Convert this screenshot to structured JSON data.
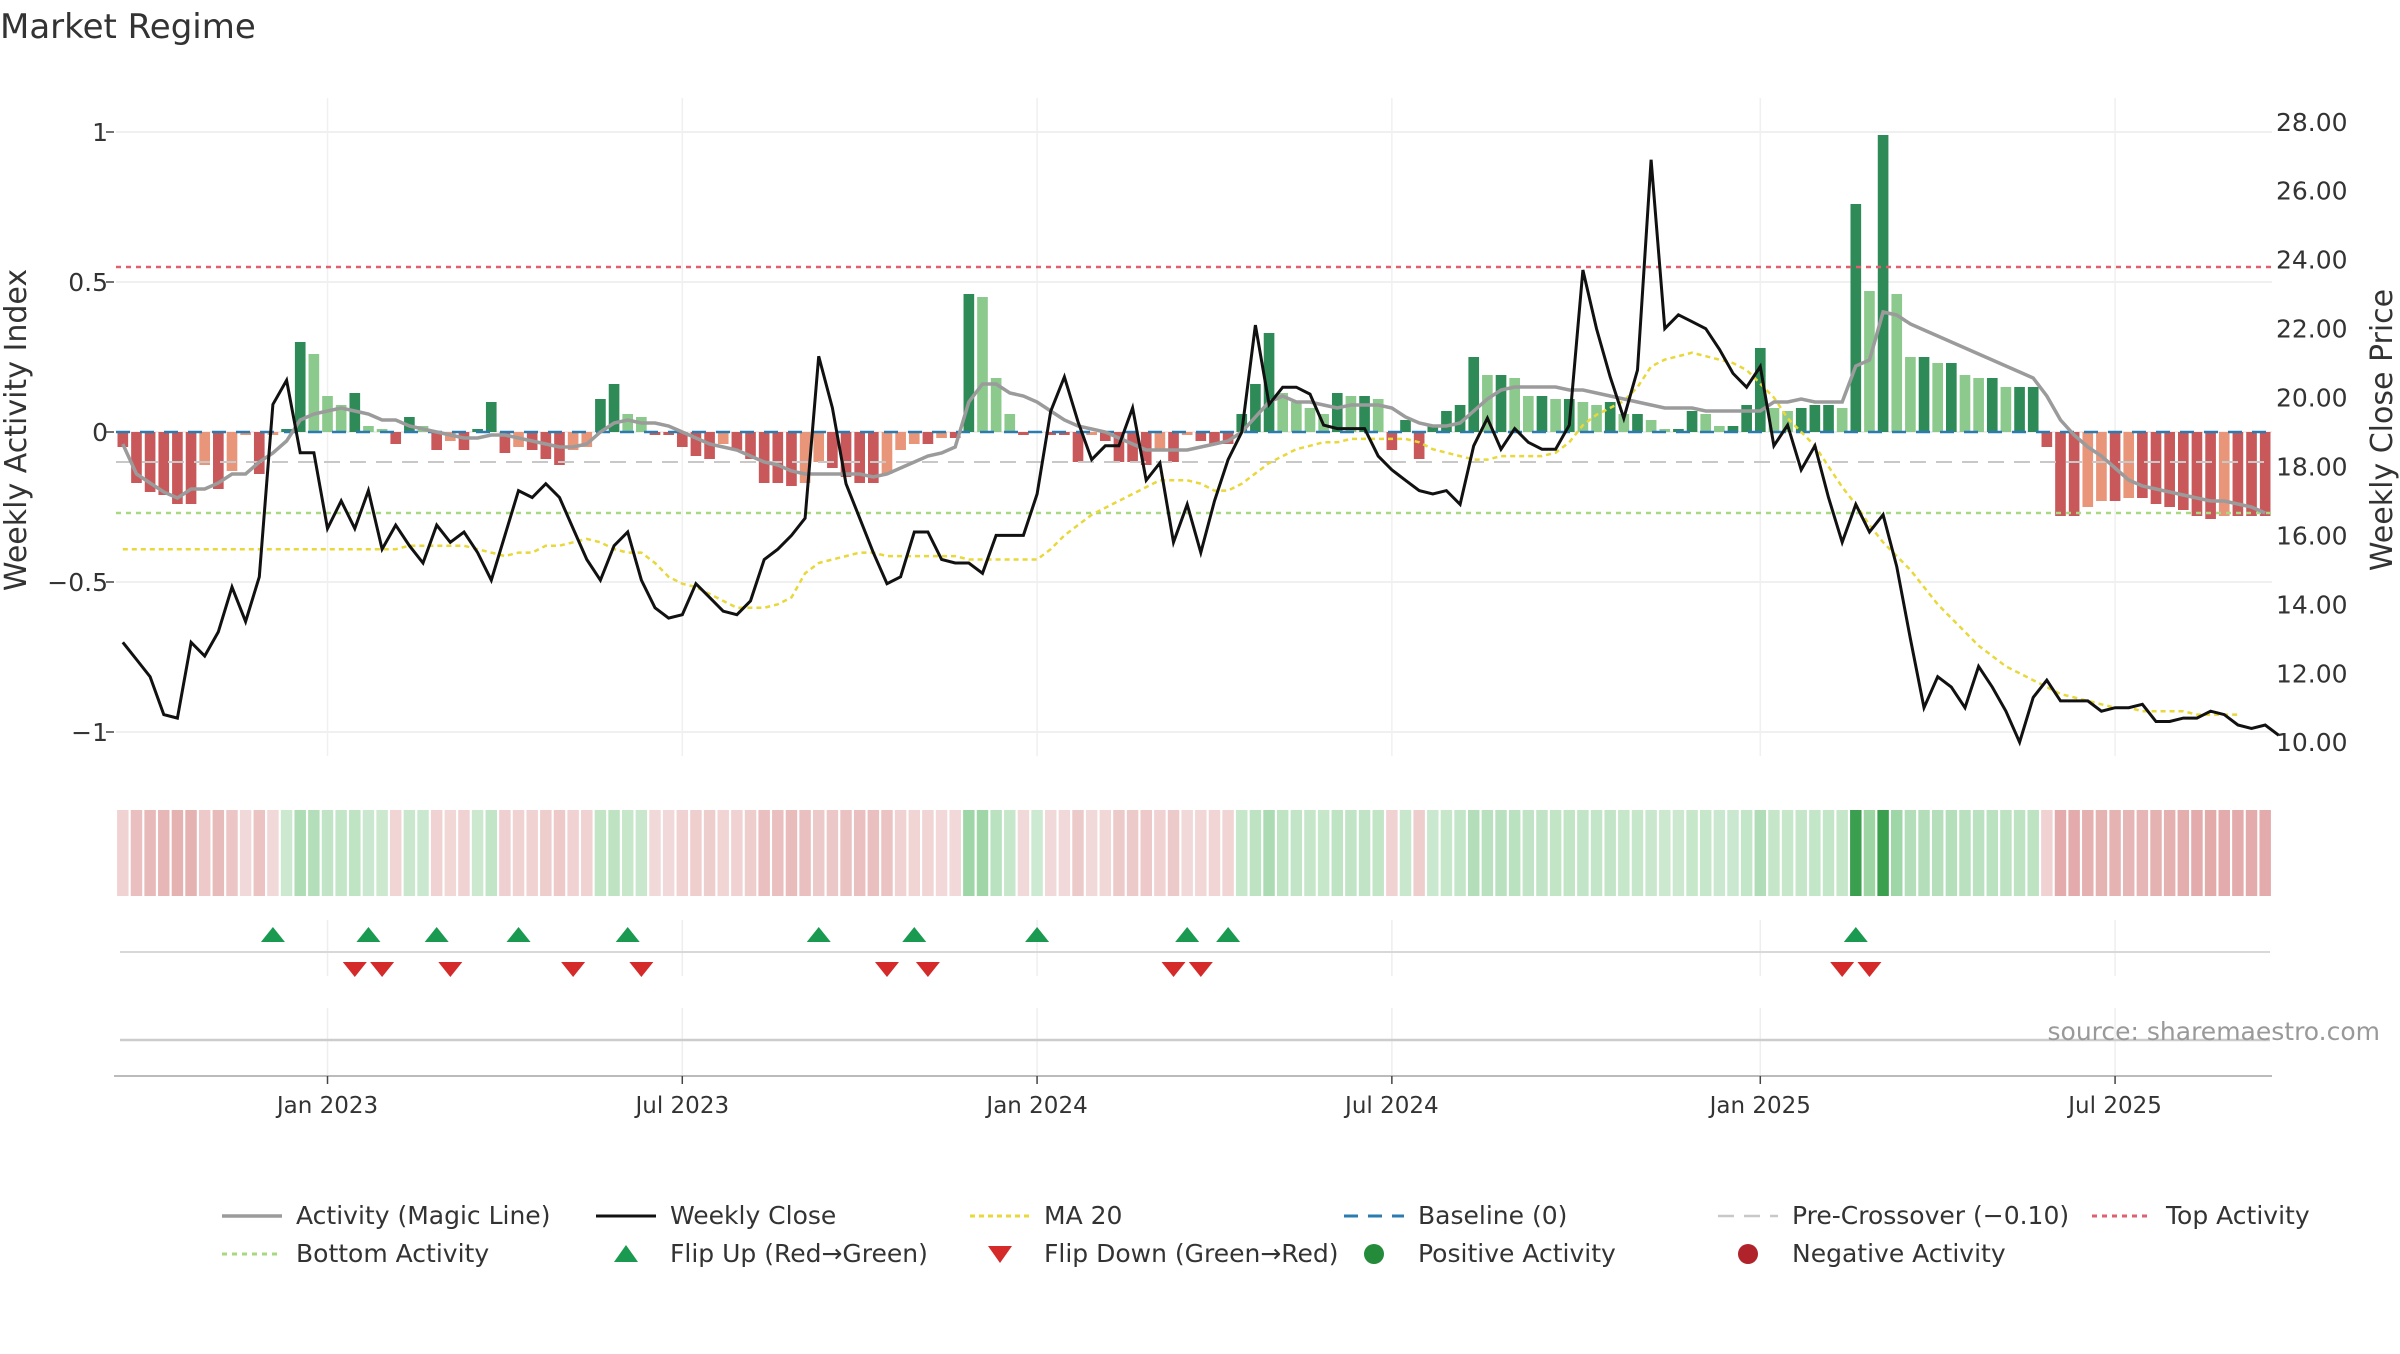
{
  "chart_data": {
    "type": "bar",
    "title": "Market Regime",
    "source_note": "source: sharemaestro.com",
    "ylabel_left": "Weekly Activity Index",
    "ylabel_right": "Weekly Close Price",
    "ylim_left": [
      -1.08,
      1.08
    ],
    "ylim_right": [
      9.6,
      28.4
    ],
    "left_ticks": [
      {
        "value": 1,
        "label": "1"
      },
      {
        "value": 0.5,
        "label": "0.5"
      },
      {
        "value": 0,
        "label": "0"
      },
      {
        "value": -0.5,
        "label": "−0.5"
      },
      {
        "value": -1,
        "label": "−1"
      }
    ],
    "right_ticks": [
      {
        "value": 28,
        "label": "28.00"
      },
      {
        "value": 26,
        "label": "26.00"
      },
      {
        "value": 24,
        "label": "24.00"
      },
      {
        "value": 22,
        "label": "22.00"
      },
      {
        "value": 20,
        "label": "20.00"
      },
      {
        "value": 18,
        "label": "18.00"
      },
      {
        "value": 16,
        "label": "16.00"
      },
      {
        "value": 14,
        "label": "14.00"
      },
      {
        "value": 12,
        "label": "12.00"
      },
      {
        "value": 10,
        "label": "10.00"
      }
    ],
    "x_ticks": [
      {
        "index": 15,
        "label": "Jan 2023"
      },
      {
        "index": 41,
        "label": "Jul 2023"
      },
      {
        "index": 67,
        "label": "Jan 2024"
      },
      {
        "index": 93,
        "label": "Jul 2024"
      },
      {
        "index": 120,
        "label": "Jan 2025"
      },
      {
        "index": 146,
        "label": "Jul 2025"
      }
    ],
    "n_weeks": 158,
    "activity": [
      -0.05,
      -0.17,
      -0.2,
      -0.21,
      -0.24,
      -0.24,
      -0.11,
      -0.19,
      -0.13,
      -0.01,
      -0.14,
      -0.01,
      0.01,
      0.3,
      0.26,
      0.12,
      0.09,
      0.13,
      0.02,
      0.01,
      -0.04,
      0.05,
      0.02,
      -0.06,
      -0.03,
      -0.06,
      0.01,
      0.1,
      -0.07,
      -0.05,
      -0.06,
      -0.09,
      -0.11,
      -0.06,
      -0.05,
      0.11,
      0.16,
      0.06,
      0.05,
      -0.01,
      -0.01,
      -0.05,
      -0.08,
      -0.09,
      -0.04,
      -0.06,
      -0.09,
      -0.17,
      -0.17,
      -0.18,
      -0.17,
      -0.1,
      -0.12,
      -0.15,
      -0.17,
      -0.17,
      -0.14,
      -0.06,
      -0.04,
      -0.04,
      -0.02,
      -0.02,
      0.46,
      0.45,
      0.18,
      0.06,
      -0.01,
      0.0,
      -0.01,
      -0.01,
      -0.1,
      -0.01,
      -0.03,
      -0.1,
      -0.1,
      -0.11,
      -0.06,
      -0.1,
      -0.01,
      -0.03,
      -0.04,
      -0.04,
      0.06,
      0.16,
      0.33,
      0.13,
      0.1,
      0.08,
      0.06,
      0.13,
      0.12,
      0.12,
      0.11,
      -0.06,
      0.04,
      -0.09,
      0.02,
      0.07,
      0.09,
      0.25,
      0.19,
      0.19,
      0.18,
      0.12,
      0.12,
      0.11,
      0.11,
      0.1,
      0.09,
      0.1,
      0.06,
      0.06,
      0.04,
      0.01,
      0.01,
      0.07,
      0.06,
      0.02,
      0.02,
      0.09,
      0.28,
      0.08,
      0.07,
      0.08,
      0.09,
      0.09,
      0.08,
      0.76,
      0.47,
      0.99,
      0.46,
      0.25,
      0.25,
      0.23,
      0.23,
      0.19,
      0.18,
      0.18,
      0.15,
      0.15,
      0.15,
      -0.05,
      -0.28,
      -0.28,
      -0.25,
      -0.23,
      -0.23,
      -0.22,
      -0.22,
      -0.24,
      -0.25,
      -0.26,
      -0.28,
      -0.29,
      -0.28,
      -0.28,
      -0.28,
      -0.28
    ],
    "magic_line": [
      -0.04,
      -0.14,
      -0.17,
      -0.2,
      -0.22,
      -0.19,
      -0.19,
      -0.17,
      -0.14,
      -0.14,
      -0.1,
      -0.07,
      -0.03,
      0.04,
      0.06,
      0.07,
      0.08,
      0.07,
      0.06,
      0.04,
      0.04,
      0.02,
      0.01,
      0.0,
      -0.01,
      -0.02,
      -0.02,
      -0.01,
      -0.01,
      -0.02,
      -0.03,
      -0.04,
      -0.05,
      -0.05,
      -0.04,
      0.0,
      0.03,
      0.04,
      0.03,
      0.03,
      0.02,
      0.0,
      -0.02,
      -0.04,
      -0.05,
      -0.06,
      -0.08,
      -0.1,
      -0.11,
      -0.13,
      -0.14,
      -0.14,
      -0.14,
      -0.14,
      -0.14,
      -0.15,
      -0.14,
      -0.12,
      -0.1,
      -0.08,
      -0.07,
      -0.05,
      0.1,
      0.16,
      0.16,
      0.13,
      0.12,
      0.1,
      0.07,
      0.04,
      0.02,
      0.01,
      0.0,
      -0.02,
      -0.04,
      -0.06,
      -0.06,
      -0.06,
      -0.06,
      -0.05,
      -0.04,
      -0.03,
      0.0,
      0.05,
      0.1,
      0.12,
      0.1,
      0.1,
      0.09,
      0.08,
      0.09,
      0.09,
      0.09,
      0.08,
      0.05,
      0.03,
      0.02,
      0.02,
      0.03,
      0.07,
      0.11,
      0.14,
      0.15,
      0.15,
      0.15,
      0.15,
      0.14,
      0.14,
      0.13,
      0.12,
      0.11,
      0.1,
      0.09,
      0.08,
      0.08,
      0.08,
      0.07,
      0.07,
      0.07,
      0.07,
      0.07,
      0.1,
      0.1,
      0.11,
      0.1,
      0.1,
      0.1,
      0.22,
      0.24,
      0.4,
      0.39,
      0.36,
      0.34,
      0.32,
      0.3,
      0.28,
      0.26,
      0.24,
      0.22,
      0.2,
      0.18,
      0.12,
      0.04,
      -0.01,
      -0.05,
      -0.08,
      -0.12,
      -0.16,
      -0.18,
      -0.19,
      -0.2,
      -0.21,
      -0.22,
      -0.23,
      -0.23,
      -0.24,
      -0.25,
      -0.27
    ],
    "weekly_close": [
      12.9,
      12.4,
      11.9,
      10.8,
      10.7,
      12.9,
      12.5,
      13.2,
      14.5,
      13.5,
      14.8,
      19.8,
      20.5,
      18.4,
      18.4,
      16.2,
      17.0,
      16.2,
      17.3,
      15.6,
      16.3,
      15.7,
      15.2,
      16.3,
      15.8,
      16.1,
      15.5,
      14.7,
      16.0,
      17.3,
      17.1,
      17.5,
      17.1,
      16.2,
      15.3,
      14.7,
      15.7,
      16.1,
      14.7,
      13.9,
      13.6,
      13.7,
      14.6,
      14.2,
      13.8,
      13.7,
      14.1,
      15.3,
      15.6,
      16.0,
      16.5,
      21.2,
      19.7,
      17.5,
      16.5,
      15.5,
      14.6,
      14.8,
      16.1,
      16.1,
      15.3,
      15.2,
      15.2,
      14.9,
      16.0,
      16.0,
      16.0,
      17.2,
      19.6,
      20.6,
      19.3,
      18.2,
      18.6,
      18.6,
      19.7,
      17.6,
      18.1,
      15.8,
      16.9,
      15.5,
      17.0,
      18.2,
      19.0,
      22.1,
      19.8,
      20.3,
      20.3,
      20.1,
      19.2,
      19.1,
      19.1,
      19.1,
      18.3,
      17.9,
      17.6,
      17.3,
      17.2,
      17.3,
      16.9,
      18.6,
      19.4,
      18.5,
      19.1,
      18.7,
      18.5,
      18.5,
      19.2,
      23.7,
      22.0,
      20.6,
      19.4,
      20.8,
      26.9,
      22.0,
      22.4,
      22.2,
      22.0,
      21.4,
      20.7,
      20.3,
      20.9,
      18.6,
      19.2,
      17.9,
      18.6,
      17.1,
      15.8,
      16.9,
      16.1,
      16.6,
      15.1,
      13.0,
      11.0,
      11.9,
      11.6,
      11.0,
      12.2,
      11.6,
      10.9,
      10.0,
      11.3,
      11.8,
      11.2,
      11.2,
      11.2,
      10.9,
      11.0,
      11.0,
      11.1,
      10.6,
      10.6,
      10.7,
      10.7,
      10.9,
      10.8,
      10.5,
      10.4,
      10.5,
      10.2
    ],
    "ma20": [
      15.6,
      15.6,
      15.6,
      15.6,
      15.6,
      15.6,
      15.6,
      15.6,
      15.6,
      15.6,
      15.6,
      15.6,
      15.6,
      15.6,
      15.6,
      15.6,
      15.6,
      15.6,
      15.6,
      15.6,
      15.6,
      15.7,
      15.7,
      15.7,
      15.7,
      15.7,
      15.6,
      15.5,
      15.4,
      15.5,
      15.5,
      15.7,
      15.7,
      15.8,
      15.9,
      15.8,
      15.6,
      15.5,
      15.5,
      15.2,
      14.8,
      14.6,
      14.5,
      14.3,
      14.1,
      13.9,
      13.9,
      13.9,
      14.0,
      14.2,
      14.9,
      15.2,
      15.3,
      15.4,
      15.5,
      15.5,
      15.4,
      15.4,
      15.4,
      15.4,
      15.4,
      15.4,
      15.3,
      15.3,
      15.3,
      15.3,
      15.3,
      15.3,
      15.6,
      16.0,
      16.3,
      16.6,
      16.8,
      17.0,
      17.2,
      17.4,
      17.6,
      17.6,
      17.6,
      17.5,
      17.3,
      17.3,
      17.5,
      17.8,
      18.1,
      18.3,
      18.5,
      18.6,
      18.7,
      18.7,
      18.8,
      18.8,
      18.8,
      18.8,
      18.8,
      18.7,
      18.5,
      18.4,
      18.3,
      18.2,
      18.2,
      18.3,
      18.3,
      18.3,
      18.3,
      18.4,
      18.7,
      19.2,
      19.5,
      19.7,
      19.9,
      20.3,
      20.9,
      21.1,
      21.2,
      21.3,
      21.2,
      21.1,
      21.0,
      20.8,
      20.4,
      20.0,
      19.4,
      19.0,
      18.6,
      18.0,
      17.4,
      16.9,
      16.3,
      15.8,
      15.4,
      15.0,
      14.5,
      14.0,
      13.6,
      13.2,
      12.8,
      12.5,
      12.2,
      12.0,
      11.8,
      11.6,
      11.4,
      11.3,
      11.2,
      11.1,
      11.0,
      11.0,
      10.9,
      10.9,
      10.9,
      10.9,
      10.8,
      10.8,
      10.8,
      10.8
    ],
    "baseline": 0,
    "pre_crossover": -0.1,
    "top_activity": 0.55,
    "bottom_activity": -0.27,
    "flip_up_indices": [
      11,
      18,
      23,
      29,
      37,
      51,
      58,
      67,
      78,
      81,
      127
    ],
    "flip_down_indices": [
      17,
      19,
      24,
      33,
      38,
      56,
      59,
      77,
      79,
      126,
      128
    ],
    "legend": {
      "magic_line": "Activity (Magic Line)",
      "weekly_close": "Weekly Close",
      "ma20": "MA 20",
      "baseline": "Baseline (0)",
      "pre_crossover": "Pre-Crossover (−0.10)",
      "top_activity": "Top Activity",
      "bottom_activity": "Bottom Activity",
      "flip_up": "Flip Up (Red→Green)",
      "flip_down": "Flip Down (Green→Red)",
      "positive": "Positive Activity",
      "negative": "Negative Activity"
    },
    "colors": {
      "green_strong": "#2e8b57",
      "green_light": "#8cc98c",
      "red_strong": "#c9585a",
      "red_light": "#e8957a",
      "magic_line": "#9b9b9b",
      "weekly_close": "#111111",
      "ma20": "#e8d83a",
      "baseline": "#2b7bb0",
      "pre_crossover": "#c8c8c8",
      "top_activity": "#e06070",
      "bottom_activity": "#a8d880",
      "flip_up": "#1a9a50",
      "flip_down": "#d42a2a",
      "positive_dot": "#238b3a",
      "negative_dot": "#b0232b"
    }
  }
}
